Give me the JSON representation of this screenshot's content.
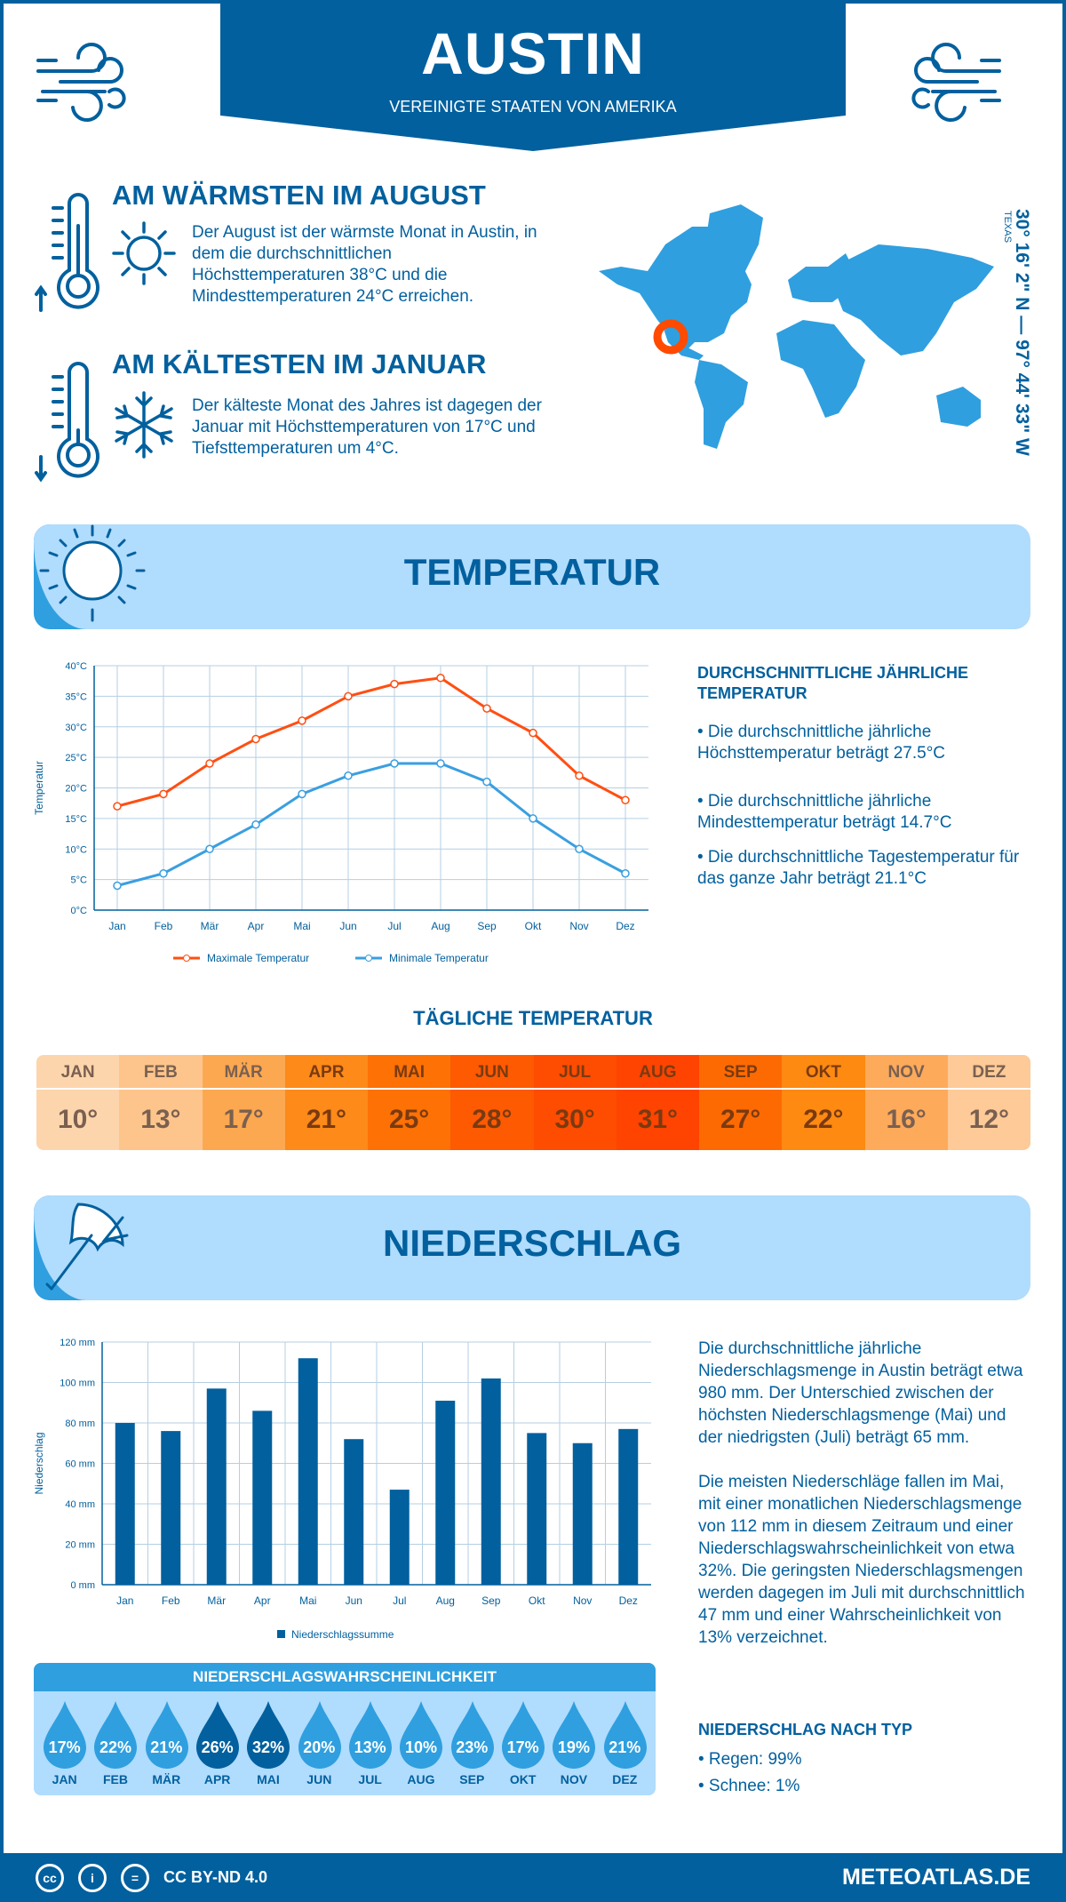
{
  "header": {
    "city": "AUSTIN",
    "country": "VEREINIGTE STAATEN VON AMERIKA"
  },
  "warmest": {
    "title": "AM WÄRMSTEN IM AUGUST",
    "text": "Der August ist der wärmste Monat in Austin, in dem die durchschnittlichen Höchsttemperaturen 38°C und die Mindesttemperaturen 24°C erreichen."
  },
  "coldest": {
    "title": "AM KÄLTESTEN IM JANUAR",
    "text": "Der kälteste Monat des Jahres ist dagegen der Januar mit Höchsttemperaturen von 17°C und Tiefsttemperaturen um 4°C."
  },
  "location": {
    "coords": "30° 16' 2\" N — 97° 44' 33\" W",
    "region": "TEXAS"
  },
  "colors": {
    "dark_blue": "#02609e",
    "mid_blue": "#2f9fdf",
    "light_blue": "#b0dcfd",
    "max_line": "#ff4f12",
    "min_line": "#3a9fe0",
    "marker": "#ff4a00"
  },
  "temperature_section": {
    "title": "TEMPERATUR",
    "summary_title": "DURCHSCHNITTLICHE JÄHRLICHE TEMPERATUR",
    "bullets": [
      "• Die durchschnittliche jährliche Höchsttemperatur beträgt 27.5°C",
      "• Die durchschnittliche jährliche Mindesttemperatur beträgt 14.7°C",
      "• Die durchschnittliche Tagestemperatur für das ganze Jahr beträgt 21.1°C"
    ]
  },
  "daily": {
    "title": "TÄGLICHE TEMPERATUR",
    "months": [
      "JAN",
      "FEB",
      "MÄR",
      "APR",
      "MAI",
      "JUN",
      "JUL",
      "AUG",
      "SEP",
      "OKT",
      "NOV",
      "DEZ"
    ],
    "values": [
      "10°",
      "13°",
      "17°",
      "21°",
      "25°",
      "28°",
      "30°",
      "31°",
      "27°",
      "22°",
      "16°",
      "12°"
    ],
    "colors": [
      "#fdd5ac",
      "#fdc58c",
      "#fca851",
      "#fd8a19",
      "#fe7104",
      "#fe5a02",
      "#fe4c00",
      "#fe4400",
      "#fe6a02",
      "#fe8a12",
      "#fdaa5b",
      "#fdca98"
    ]
  },
  "precip_section": {
    "title": "NIEDERSCHLAG",
    "paragraph1": "Die durchschnittliche jährliche Niederschlagsmenge in Austin beträgt etwa 980 mm. Der Unterschied zwischen der höchsten Niederschlagsmenge (Mai) und der niedrigsten (Juli) beträgt 65 mm.",
    "paragraph2": "Die meisten Niederschläge fallen im Mai, mit einer monatlichen Niederschlagsmenge von 112 mm in diesem Zeitraum und einer Niederschlagswahrscheinlichkeit von etwa 32%. Die geringsten Niederschlagsmengen werden dagegen im Juli mit durchschnittlich 47 mm und einer Wahrscheinlichkeit von 13% verzeichnet.",
    "type_title": "NIEDERSCHLAG NACH TYP",
    "types": [
      "• Regen: 99%",
      "• Schnee: 1%"
    ]
  },
  "probability": {
    "title": "NIEDERSCHLAGSWAHRSCHEINLICHKEIT",
    "months": [
      "JAN",
      "FEB",
      "MÄR",
      "APR",
      "MAI",
      "JUN",
      "JUL",
      "AUG",
      "SEP",
      "OKT",
      "NOV",
      "DEZ"
    ],
    "values": [
      "17%",
      "22%",
      "21%",
      "26%",
      "32%",
      "20%",
      "13%",
      "10%",
      "23%",
      "17%",
      "19%",
      "21%"
    ],
    "highlighted": [
      false,
      false,
      false,
      true,
      true,
      false,
      false,
      false,
      false,
      false,
      false,
      false
    ]
  },
  "chart_data": [
    {
      "type": "line",
      "categories": [
        "Jan",
        "Feb",
        "Mär",
        "Apr",
        "Mai",
        "Jun",
        "Jul",
        "Aug",
        "Sep",
        "Okt",
        "Nov",
        "Dez"
      ],
      "series": [
        {
          "name": "Maximale Temperatur",
          "values": [
            17,
            19,
            24,
            28,
            31,
            35,
            37,
            38,
            33,
            29,
            22,
            18
          ],
          "color": "#ff4f12"
        },
        {
          "name": "Minimale Temperatur",
          "values": [
            4,
            6,
            10,
            14,
            19,
            22,
            24,
            24,
            21,
            15,
            10,
            6
          ],
          "color": "#3a9fe0"
        }
      ],
      "ylabel": "Temperatur",
      "ylim": [
        0,
        40
      ],
      "yticks": [
        "0°C",
        "5°C",
        "10°C",
        "15°C",
        "20°C",
        "25°C",
        "30°C",
        "35°C",
        "40°C"
      ],
      "grid": true,
      "legend": "bottom"
    },
    {
      "type": "bar",
      "categories": [
        "Jan",
        "Feb",
        "Mär",
        "Apr",
        "Mai",
        "Jun",
        "Jul",
        "Aug",
        "Sep",
        "Okt",
        "Nov",
        "Dez"
      ],
      "series": [
        {
          "name": "Niederschlagssumme",
          "values": [
            80,
            76,
            97,
            86,
            112,
            72,
            47,
            91,
            102,
            75,
            70,
            77
          ],
          "color": "#02609e"
        }
      ],
      "ylabel": "Niederschlag",
      "ylim": [
        0,
        120
      ],
      "yticks": [
        "0 mm",
        "20 mm",
        "40 mm",
        "60 mm",
        "80 mm",
        "100 mm",
        "120 mm"
      ],
      "grid": true,
      "legend": "bottom"
    }
  ],
  "footer": {
    "license": "CC BY-ND 4.0",
    "site": "METEOATLAS.DE",
    "cc_icon": "cc",
    "by_icon": "person",
    "nd_icon": "="
  }
}
